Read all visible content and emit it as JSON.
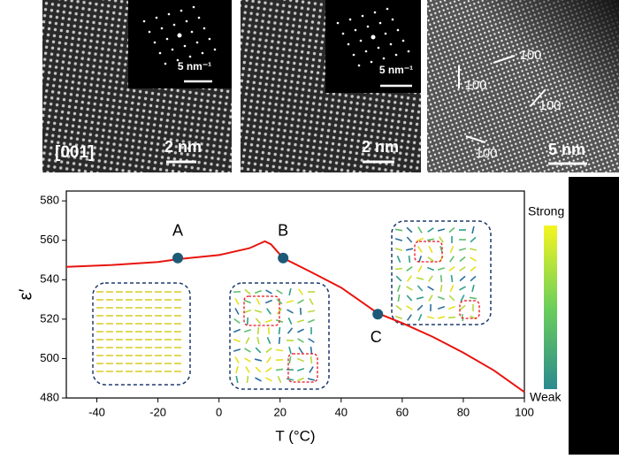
{
  "panels": [
    {
      "label": "[001]",
      "scale": "2 nm",
      "inset_scale": "5 nm⁻¹"
    },
    {
      "scale": "2 nm",
      "inset_scale": "5 nm⁻¹"
    },
    {
      "scale": "5 nm",
      "directions": [
        "100",
        "100",
        "100",
        "100"
      ]
    }
  ],
  "chart_data": {
    "type": "line",
    "x_label": "T (°C)",
    "y_label": "ε′",
    "x": [
      -50,
      -35,
      -20,
      -13,
      0,
      10,
      15,
      17,
      21,
      30,
      40,
      52,
      60,
      70,
      80,
      90,
      100
    ],
    "series": [
      {
        "color": "#e8140f",
        "values": [
          546.5,
          547.5,
          549,
          550.5,
          552.5,
          556,
          559.5,
          558,
          551,
          544,
          536,
          523,
          518,
          511,
          503,
          494,
          483
        ]
      }
    ],
    "points": {
      "labels": [
        "A",
        "B",
        "C"
      ],
      "x": [
        -13.5,
        21,
        52
      ],
      "values": [
        551,
        551,
        522.5
      ],
      "color": "#1d5a78"
    },
    "xlim": [
      -50,
      100
    ],
    "xticks": [
      -40,
      -20,
      0,
      20,
      40,
      60,
      80,
      100
    ],
    "ylim": [
      480,
      585
    ],
    "yticks": [
      480,
      500,
      520,
      540,
      560,
      580
    ],
    "colorbar": {
      "labels": [
        "Strong",
        "Weak"
      ],
      "colors": [
        "#f5f520",
        "#2a8a8f"
      ]
    }
  }
}
